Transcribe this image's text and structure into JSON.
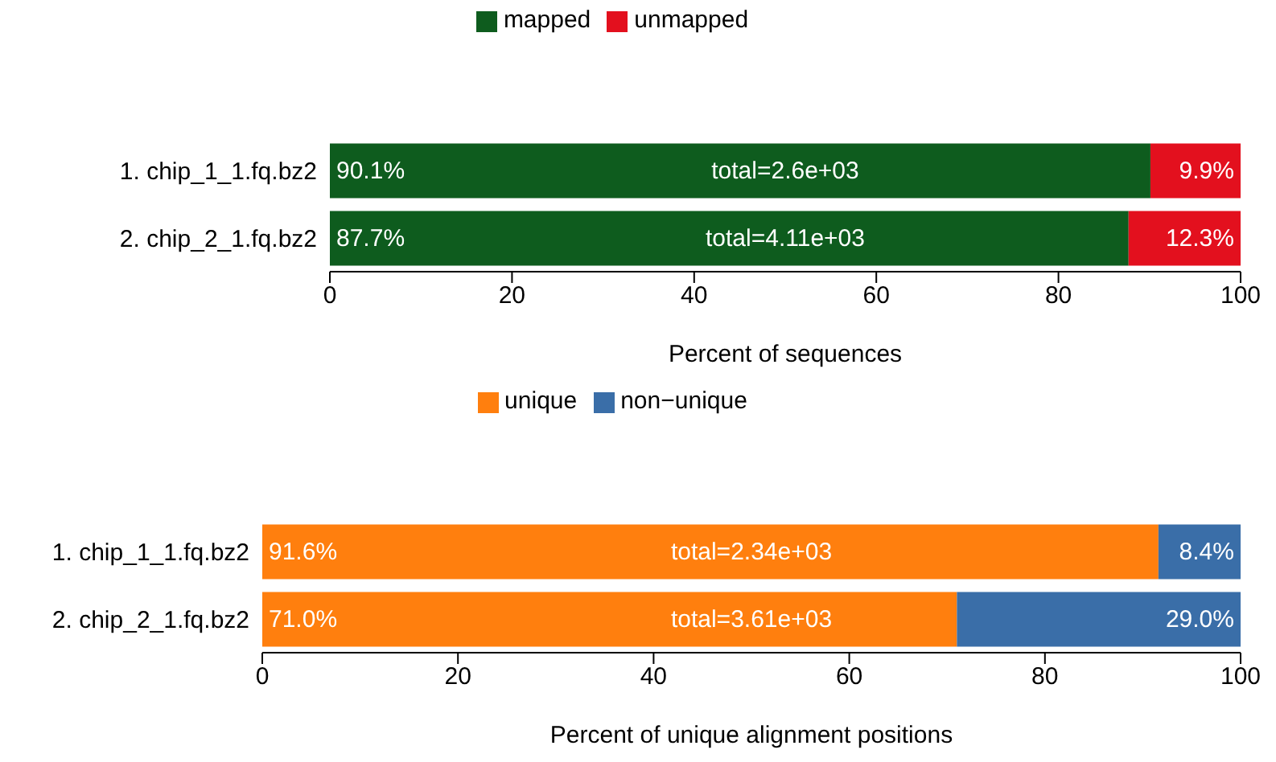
{
  "chart_data": [
    {
      "type": "bar",
      "orientation": "horizontal",
      "stacked": true,
      "categories": [
        "1. chip_1_1.fq.bz2",
        "2. chip_2_1.fq.bz2"
      ],
      "xlabel": "Percent of sequences",
      "xlim": [
        0,
        100
      ],
      "xticks": [
        0,
        20,
        40,
        60,
        80,
        100
      ],
      "grid": false,
      "legend": "top",
      "series": [
        {
          "name": "mapped",
          "color": "#0e5c1e",
          "values": [
            90.1,
            87.7
          ],
          "value_labels": [
            "90.1%",
            "87.7%"
          ]
        },
        {
          "name": "unmapped",
          "color": "#e3101e",
          "values": [
            9.9,
            12.3
          ],
          "value_labels": [
            "9.9%",
            "12.3%"
          ]
        }
      ],
      "totals": [
        "total=2.6e+03",
        "total=4.11e+03"
      ]
    },
    {
      "type": "bar",
      "orientation": "horizontal",
      "stacked": true,
      "categories": [
        "1. chip_1_1.fq.bz2",
        "2. chip_2_1.fq.bz2"
      ],
      "xlabel": "Percent of unique alignment positions",
      "xlim": [
        0,
        100
      ],
      "xticks": [
        0,
        20,
        40,
        60,
        80,
        100
      ],
      "grid": false,
      "legend": "top",
      "series": [
        {
          "name": "unique",
          "color": "#ff7f0e",
          "values": [
            91.6,
            71.0
          ],
          "value_labels": [
            "91.6%",
            "71.0%"
          ]
        },
        {
          "name": "non−unique",
          "color": "#3a6ea8",
          "values": [
            8.4,
            29.0
          ],
          "value_labels": [
            "8.4%",
            "29.0%"
          ]
        }
      ],
      "totals": [
        "total=2.34e+03",
        "total=3.61e+03"
      ]
    }
  ]
}
